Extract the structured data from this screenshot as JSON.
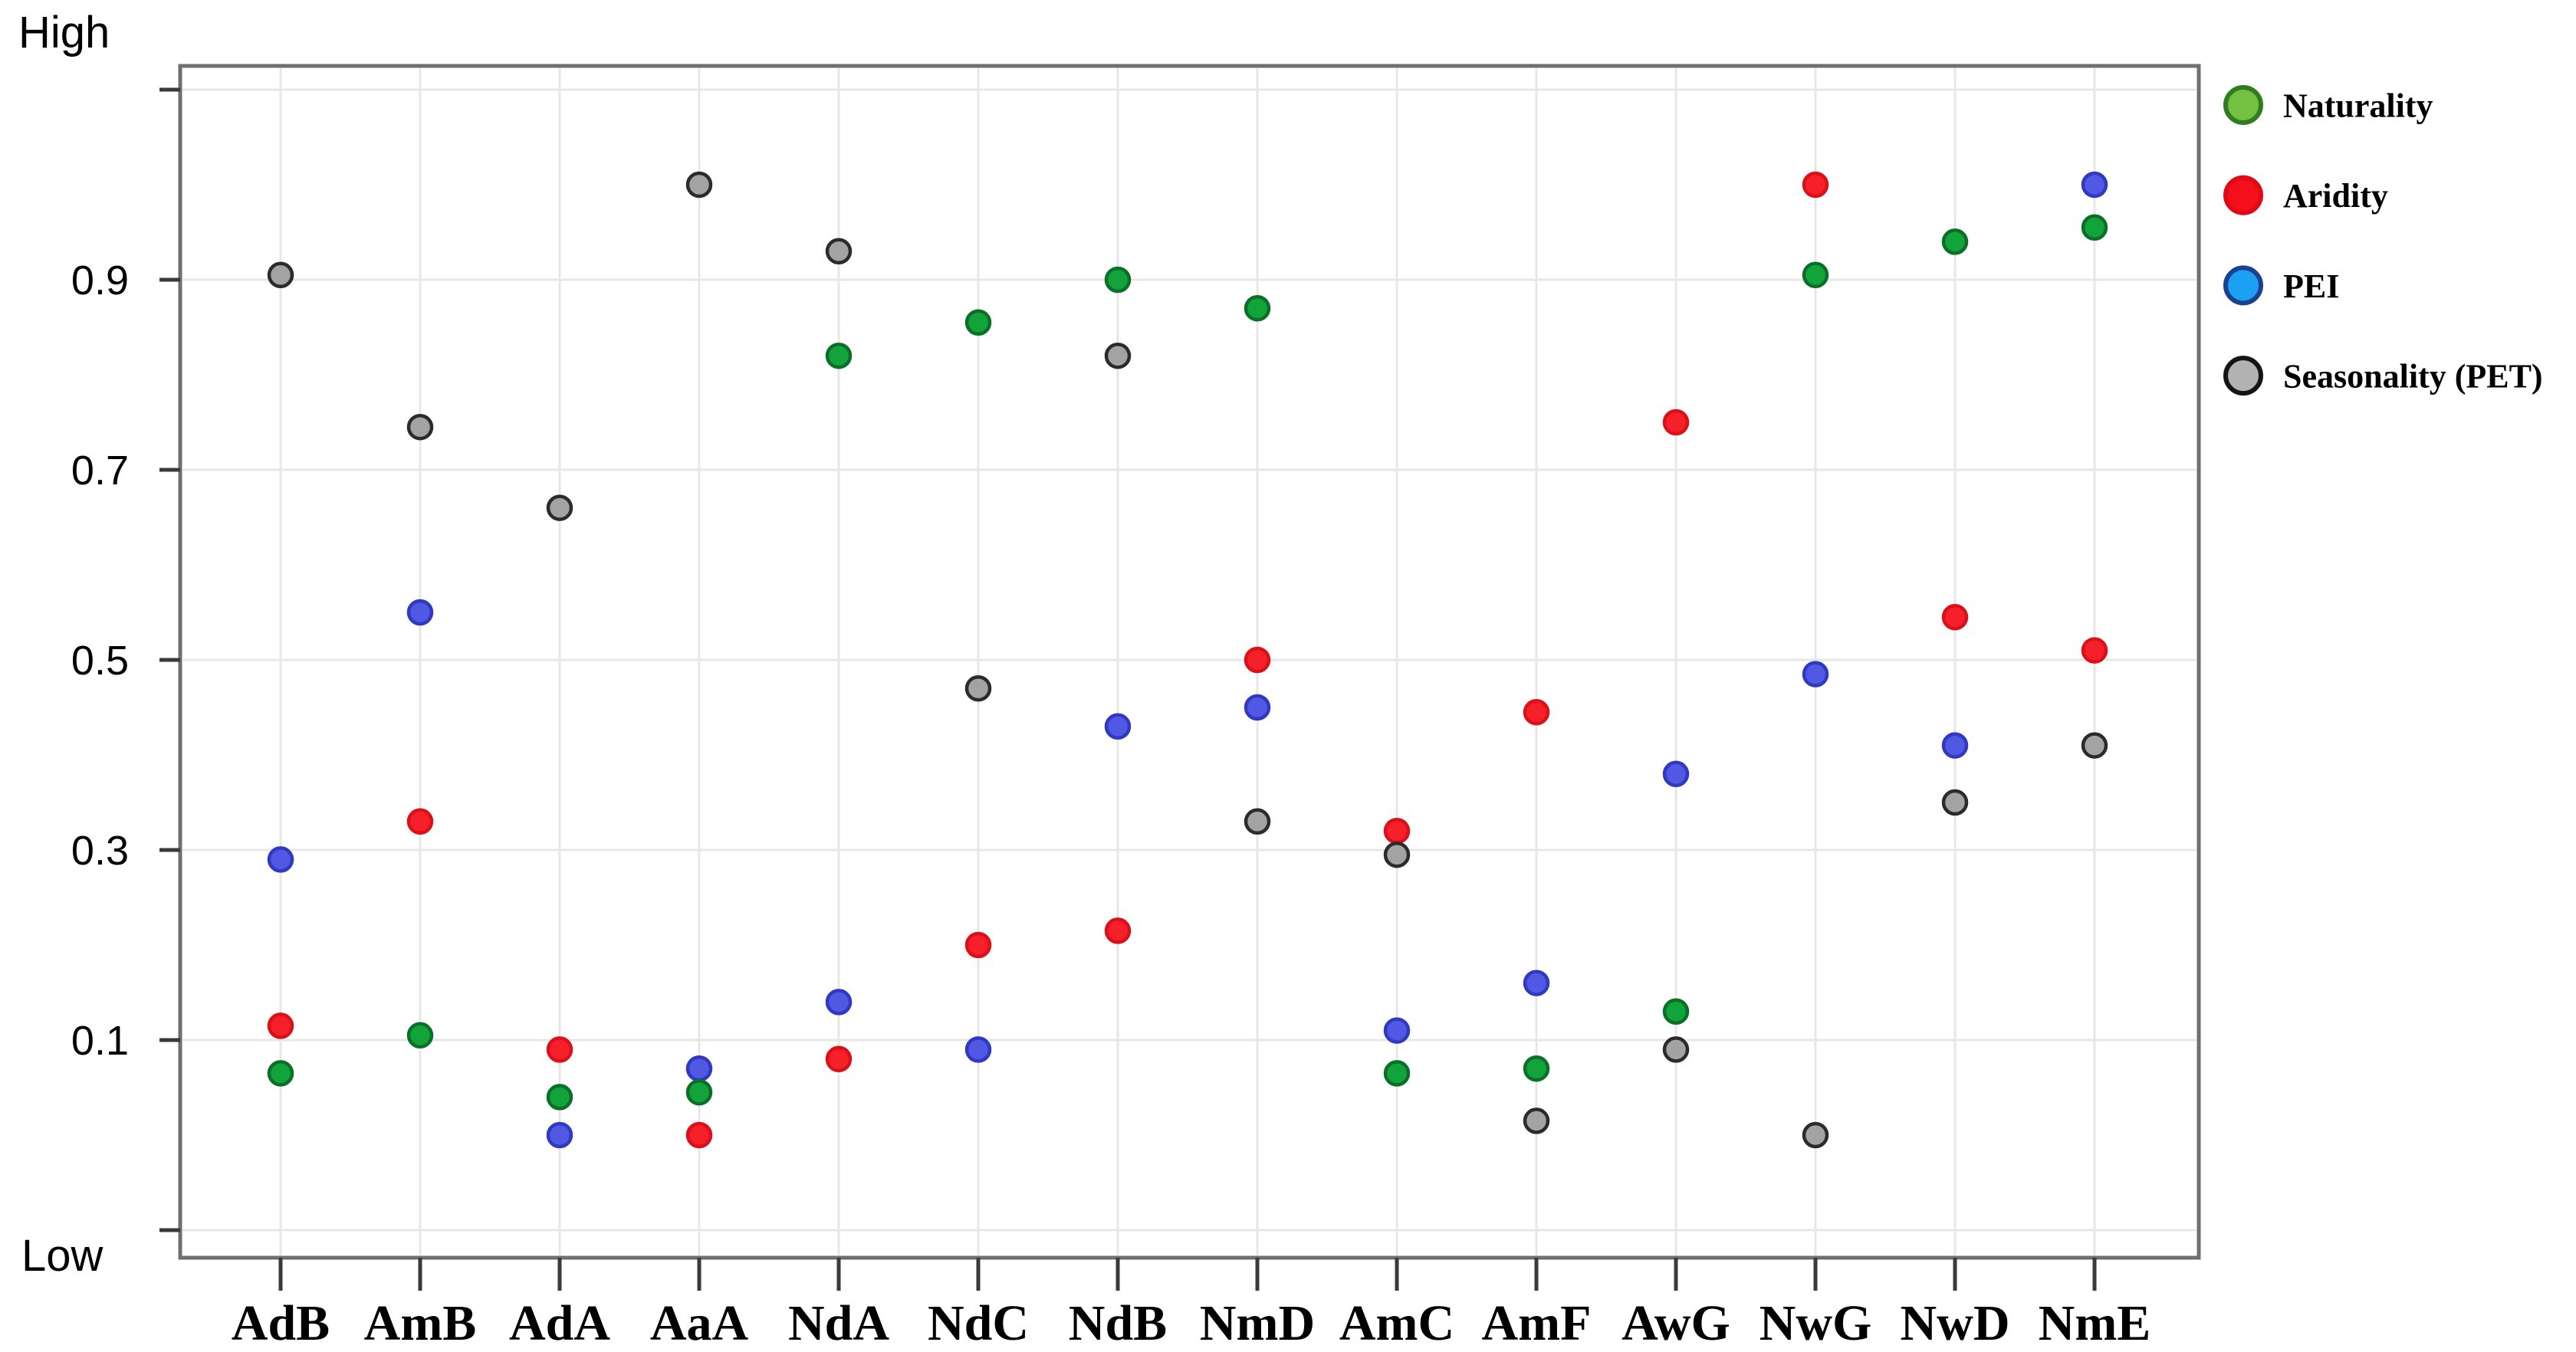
{
  "page": {
    "background": "#ffffff",
    "plot_border_color": "#6f6f6f",
    "grid_color": "#e7e7e7",
    "tick_color": "#3a3a3a",
    "text_color": "#000000"
  },
  "chart_data": {
    "type": "scatter",
    "title": "",
    "xlabel": "",
    "ylabel": "",
    "y_axis": {
      "high_label": "High",
      "low_label": "Low",
      "tick_labels": [
        "0.9",
        "0.7",
        "0.5",
        "0.3",
        "0.1"
      ],
      "tick_values": [
        0.9,
        0.7,
        0.5,
        0.3,
        0.1
      ],
      "unlabeled_tick_values": [
        1.1,
        -0.1
      ],
      "range": [
        -0.13,
        1.13
      ],
      "grid": true
    },
    "categories": [
      "AdB",
      "AmB",
      "AdA",
      "AaA",
      "NdA",
      "NdC",
      "NdB",
      "NmD",
      "AmC",
      "AmF",
      "AwG",
      "NwG",
      "NwD",
      "NmE"
    ],
    "series": [
      {
        "name": "Naturality",
        "marker_fill": "#12a43b",
        "marker_stroke": "#0a7028",
        "legend_fill": "#74c043",
        "legend_stroke": "#2f7d1e",
        "values": [
          0.065,
          0.105,
          0.04,
          0.045,
          0.82,
          0.855,
          0.9,
          0.87,
          0.065,
          0.07,
          0.13,
          0.905,
          0.94,
          0.955
        ]
      },
      {
        "name": "Aridity",
        "marker_fill": "#f6202a",
        "marker_stroke": "#dc1018",
        "legend_fill": "#f50f1a",
        "legend_stroke": "#e00a14",
        "values": [
          0.115,
          0.33,
          0.09,
          0.0,
          0.08,
          0.2,
          0.215,
          0.5,
          0.32,
          0.445,
          0.75,
          1.0,
          0.545,
          0.51
        ]
      },
      {
        "name": "PEI",
        "marker_fill": "#5158e3",
        "marker_stroke": "#3039bf",
        "legend_fill": "#1ba0f2",
        "legend_stroke": "#1a4190",
        "values": [
          0.29,
          0.55,
          0.0,
          0.07,
          0.14,
          0.09,
          0.43,
          0.45,
          0.11,
          0.16,
          0.38,
          0.485,
          0.41,
          1.0
        ]
      },
      {
        "name": "Seasonality (PET)",
        "marker_fill": "#a3a3a3",
        "marker_stroke": "#2b2b2b",
        "legend_fill": "#b2b2b2",
        "legend_stroke": "#141414",
        "values": [
          0.905,
          0.745,
          0.66,
          1.0,
          0.93,
          0.47,
          0.82,
          0.33,
          0.295,
          0.015,
          0.09,
          0.0,
          0.35,
          0.41
        ]
      }
    ],
    "legend": {
      "position": "outside-top-right",
      "items": [
        "Naturality",
        "Aridity",
        "PEI",
        "Seasonality (PET)"
      ]
    }
  }
}
